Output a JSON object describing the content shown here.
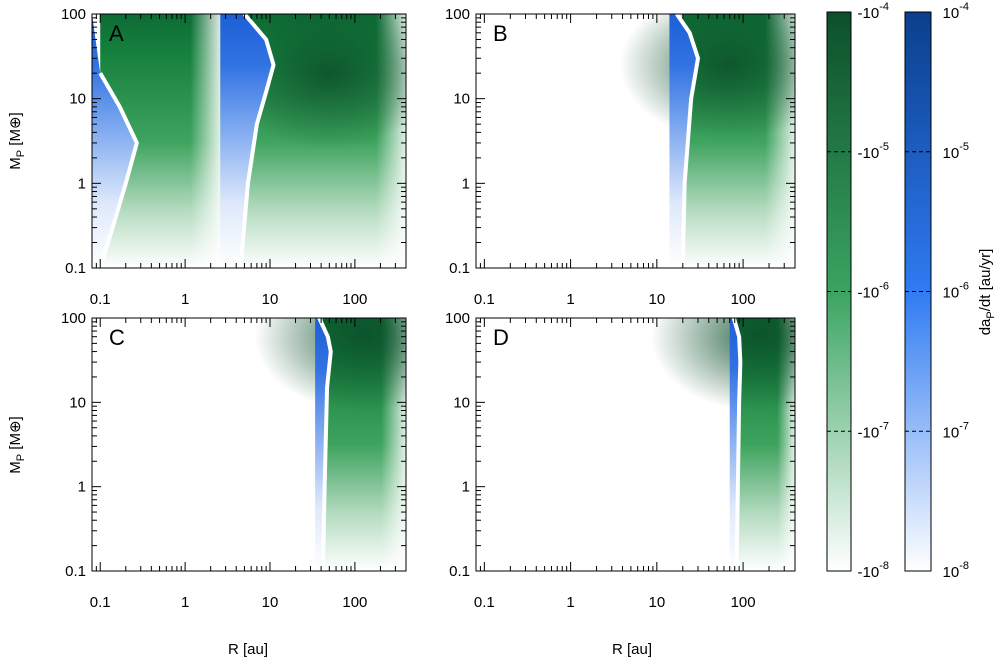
{
  "figure": {
    "x_axis_label": "R [au]",
    "y_axis_label_main": "M",
    "y_axis_label_sub": "P",
    "y_axis_label_unit": " [M⊕]",
    "colorbar_label": "da/dt [au/yr]",
    "colorbar_label_main": "da",
    "colorbar_label_sub": "P",
    "colorbar_label_rest": "/dt [au/yr]"
  },
  "chart_data": {
    "type": "heatmap",
    "x_scale": "log",
    "y_scale": "log",
    "xlim": [
      0.08,
      400
    ],
    "ylim": [
      0.1,
      100
    ],
    "x_ticks": [
      0.1,
      1,
      10,
      100
    ],
    "x_tick_labels": [
      "0.1",
      "1",
      "10",
      "100"
    ],
    "y_ticks": [
      0.1,
      1,
      10,
      100
    ],
    "y_tick_labels": [
      "0.1",
      "1",
      "10",
      "100"
    ],
    "panels": [
      {
        "label": "A",
        "outward_regions": [
          {
            "x_inner": 0.08,
            "boundary_points": [
              [
                0.1,
                20
              ],
              [
                0.17,
                8
              ],
              [
                0.27,
                3
              ],
              [
                0.2,
                1
              ],
              [
                0.14,
                0.3
              ],
              [
                0.1,
                0.1
              ]
            ]
          },
          {
            "x_inner": 2.6,
            "boundary_points": [
              [
                5,
                100
              ],
              [
                9,
                50
              ],
              [
                11,
                25
              ],
              [
                9,
                12
              ],
              [
                7,
                5
              ],
              [
                5.5,
                1
              ],
              [
                4.5,
                0.1
              ]
            ]
          }
        ],
        "inward_regions": [
          {
            "x_range": [
              0.1,
              2.6
            ]
          },
          {
            "x_range": [
              4.5,
              400
            ]
          }
        ],
        "inward_peak": {
          "x": 50,
          "y": 20
        }
      },
      {
        "label": "B",
        "outward_regions": [
          {
            "x_inner": 14,
            "boundary_points": [
              [
                17,
                100
              ],
              [
                24,
                60
              ],
              [
                30,
                30
              ],
              [
                25,
                10
              ],
              [
                21,
                1
              ],
              [
                20,
                0.1
              ]
            ]
          }
        ],
        "inward_regions": [
          {
            "x_range": [
              20,
              400
            ]
          }
        ],
        "inward_peak": {
          "x": 70,
          "y": 25
        }
      },
      {
        "label": "C",
        "outward_regions": [
          {
            "x_inner": 34,
            "boundary_points": [
              [
                38,
                100
              ],
              [
                48,
                60
              ],
              [
                52,
                40
              ],
              [
                47,
                15
              ],
              [
                44,
                1
              ],
              [
                42,
                0.1
              ]
            ]
          }
        ],
        "inward_regions": [
          {
            "x_range": [
              42,
              400
            ]
          }
        ],
        "inward_peak": {
          "x": 130,
          "y": 60
        }
      },
      {
        "label": "D",
        "outward_regions": [
          {
            "x_inner": 70,
            "boundary_points": [
              [
                78,
                100
              ],
              [
                90,
                60
              ],
              [
                93,
                30
              ],
              [
                90,
                10
              ],
              [
                87,
                1
              ],
              [
                84,
                0.1
              ]
            ]
          }
        ],
        "inward_regions": [
          {
            "x_range": [
              84,
              400
            ]
          }
        ],
        "inward_peak": {
          "x": 160,
          "y": 60
        }
      }
    ],
    "colorbars": [
      {
        "name": "inward",
        "colors": [
          "#ffffff",
          "#0c4f2a"
        ],
        "tick_labels": [
          {
            "main": "-10",
            "exp": "-4"
          },
          {
            "main": "-10",
            "exp": "-5"
          },
          {
            "main": "-10",
            "exp": "-6"
          },
          {
            "main": "-10",
            "exp": "-7"
          },
          {
            "main": "-10",
            "exp": "-8"
          }
        ]
      },
      {
        "name": "outward",
        "colors": [
          "#ffffff",
          "#0a3f8c"
        ],
        "tick_labels": [
          {
            "main": "10",
            "exp": "-4"
          },
          {
            "main": "10",
            "exp": "-5"
          },
          {
            "main": "10",
            "exp": "-6"
          },
          {
            "main": "10",
            "exp": "-7"
          },
          {
            "main": "10",
            "exp": "-8"
          }
        ]
      }
    ]
  }
}
